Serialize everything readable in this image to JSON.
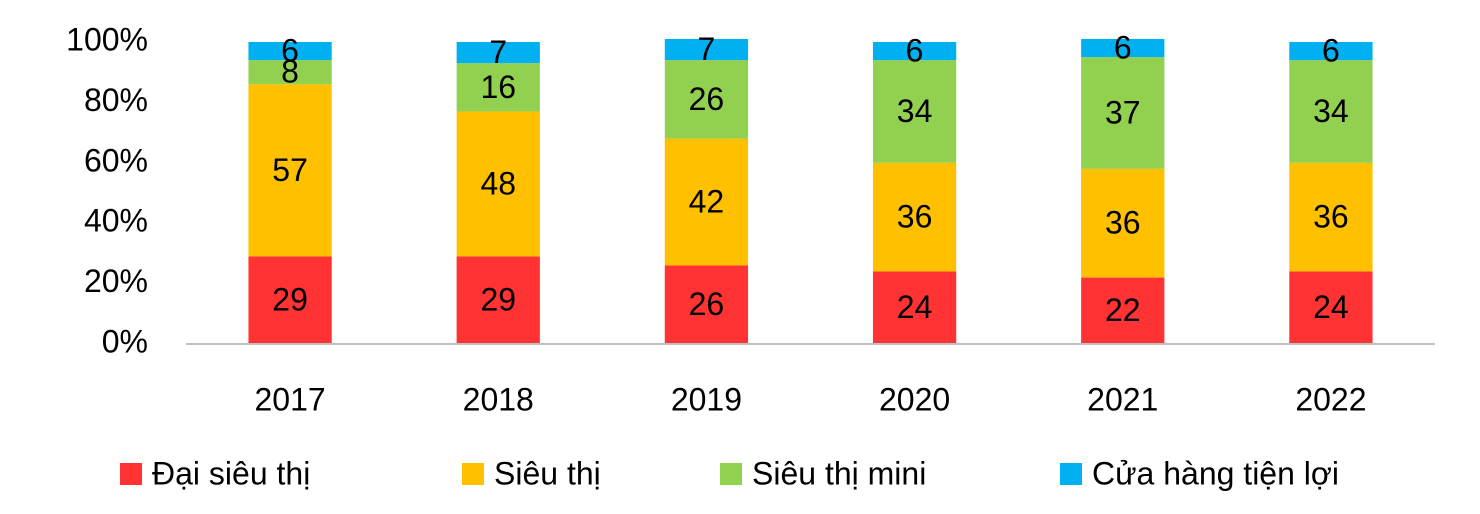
{
  "chart_data": {
    "type": "bar",
    "stacked": true,
    "categories": [
      "2017",
      "2018",
      "2019",
      "2020",
      "2021",
      "2022"
    ],
    "series": [
      {
        "name": "Đại siêu thị",
        "color": "#ff3333",
        "values": [
          29,
          29,
          26,
          24,
          22,
          24
        ]
      },
      {
        "name": "Siêu thị",
        "color": "#ffc000",
        "values": [
          57,
          48,
          42,
          36,
          36,
          36
        ]
      },
      {
        "name": "Siêu thị mini",
        "color": "#92d050",
        "values": [
          8,
          16,
          26,
          34,
          37,
          34
        ]
      },
      {
        "name": "Cửa hàng tiện lợi",
        "color": "#00b0f0",
        "values": [
          6,
          7,
          7,
          6,
          6,
          6
        ]
      }
    ],
    "ylim": [
      0,
      100
    ],
    "yticks": [
      {
        "value": 0,
        "label": "0%"
      },
      {
        "value": 20,
        "label": "20%"
      },
      {
        "value": 40,
        "label": "40%"
      },
      {
        "value": 60,
        "label": "60%"
      },
      {
        "value": 80,
        "label": "80%"
      },
      {
        "value": 100,
        "label": "100%"
      }
    ],
    "grid": false,
    "legend": "bottom"
  }
}
